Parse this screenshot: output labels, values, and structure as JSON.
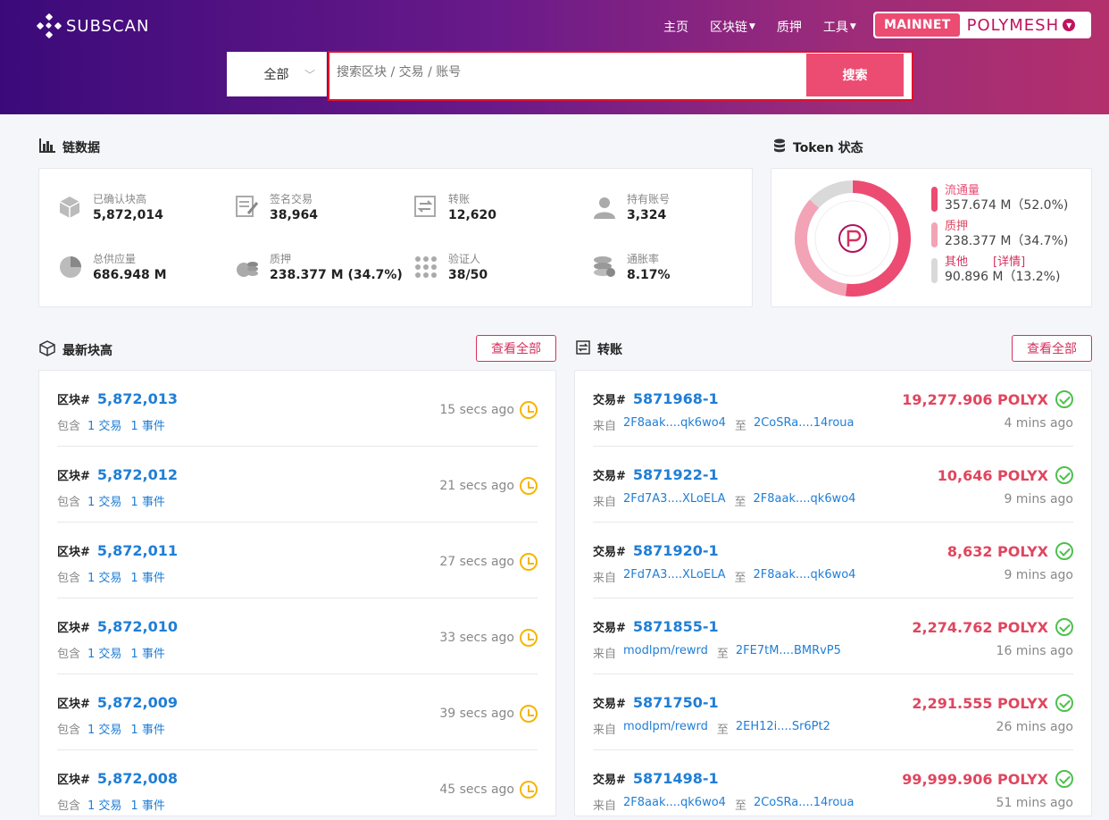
{
  "header": {
    "logo_text": "SUBSCAN",
    "nav": [
      {
        "label": "主页",
        "caret": false
      },
      {
        "label": "区块链",
        "caret": true
      },
      {
        "label": "质押",
        "caret": false
      },
      {
        "label": "工具",
        "caret": true
      }
    ],
    "network": {
      "badge": "MAINNET",
      "name": "POLYMESH"
    },
    "search": {
      "select_value": "全部",
      "placeholder": "搜索区块 / 交易 / 账号",
      "button": "搜索"
    }
  },
  "chain_data": {
    "title": "链数据",
    "stats": [
      {
        "label": "已确认块高",
        "value": "5,872,014",
        "icon": "cube-icon"
      },
      {
        "label": "签名交易",
        "value": "38,964",
        "icon": "signed-doc-icon"
      },
      {
        "label": "转账",
        "value": "12,620",
        "icon": "transfer-icon"
      },
      {
        "label": "持有账号",
        "value": "3,324",
        "icon": "user-icon"
      },
      {
        "label": "总供应量",
        "value": "686.948 M",
        "icon": "pie-icon"
      },
      {
        "label": "质押",
        "value": "238.377 M (34.7%)",
        "icon": "coins-icon"
      },
      {
        "label": "验证人",
        "value": "38/50",
        "icon": "grid-dots-icon"
      },
      {
        "label": "通胀率",
        "value": "8.17%",
        "icon": "stack-icon"
      }
    ]
  },
  "token": {
    "title": "Token 状态",
    "colors": {
      "circulating": "#ec4b72",
      "staked": "#f3a3b6",
      "other": "#d9d9d9"
    },
    "items": [
      {
        "name": "流通量",
        "value": "357.674 M（52.0%)",
        "fraction": 0.52
      },
      {
        "name": "质押",
        "value": "238.377 M（34.7%)",
        "fraction": 0.347
      },
      {
        "name": "其他",
        "value": "90.896 M（13.2%)",
        "fraction": 0.132,
        "link": "[详情]"
      }
    ]
  },
  "blocks": {
    "title": "最新块高",
    "view_all": "查看全部",
    "prefix": "区块#",
    "contains": "包含",
    "rows": [
      {
        "id": "5,872,013",
        "tx": "1 交易",
        "events": "1 事件",
        "time": "15 secs ago"
      },
      {
        "id": "5,872,012",
        "tx": "1 交易",
        "events": "1 事件",
        "time": "21 secs ago"
      },
      {
        "id": "5,872,011",
        "tx": "1 交易",
        "events": "1 事件",
        "time": "27 secs ago"
      },
      {
        "id": "5,872,010",
        "tx": "1 交易",
        "events": "1 事件",
        "time": "33 secs ago"
      },
      {
        "id": "5,872,009",
        "tx": "1 交易",
        "events": "1 事件",
        "time": "39 secs ago"
      },
      {
        "id": "5,872,008",
        "tx": "1 交易",
        "events": "1 事件",
        "time": "45 secs ago"
      }
    ]
  },
  "transfers": {
    "title": "转账",
    "view_all": "查看全部",
    "prefix": "交易#",
    "from_label": "来自",
    "to_label": "至",
    "rows": [
      {
        "id": "5871968-1",
        "from": "2F8aak....qk6wo4",
        "to": "2CoSRa....14roua",
        "amount": "19,277.906 POLYX",
        "time": "4 mins ago"
      },
      {
        "id": "5871922-1",
        "from": "2Fd7A3....XLoELA",
        "to": "2F8aak....qk6wo4",
        "amount": "10,646 POLYX",
        "time": "9 mins ago"
      },
      {
        "id": "5871920-1",
        "from": "2Fd7A3....XLoELA",
        "to": "2F8aak....qk6wo4",
        "amount": "8,632 POLYX",
        "time": "9 mins ago"
      },
      {
        "id": "5871855-1",
        "from": "modlpm/rewrd",
        "to": "2FE7tM....BMRvP5",
        "amount": "2,274.762 POLYX",
        "time": "16 mins ago"
      },
      {
        "id": "5871750-1",
        "from": "modlpm/rewrd",
        "to": "2EH12i....Sr6Pt2",
        "amount": "2,291.555 POLYX",
        "time": "26 mins ago"
      },
      {
        "id": "5871498-1",
        "from": "2F8aak....qk6wo4",
        "to": "2CoSRa....14roua",
        "amount": "99,999.906 POLYX",
        "time": "51 mins ago"
      }
    ]
  }
}
